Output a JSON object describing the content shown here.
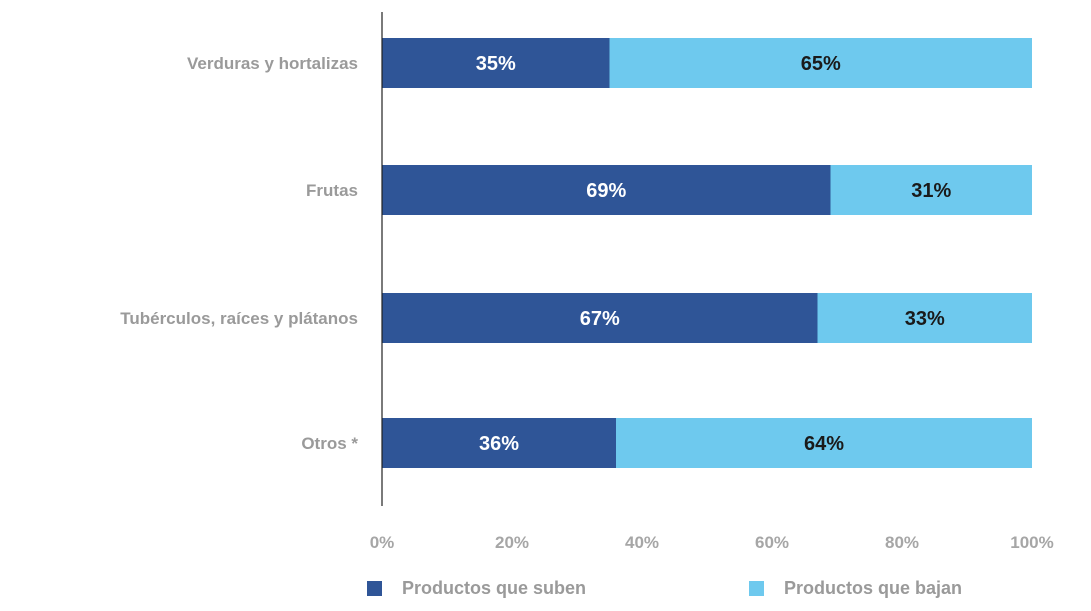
{
  "chart_data": {
    "type": "bar",
    "orientation": "horizontal",
    "stacked": true,
    "categories": [
      "Verduras y hortalizas",
      "Frutas",
      "Tubérculos, raíces y plátanos",
      "Otros *"
    ],
    "series": [
      {
        "name": "Productos que suben",
        "color": "#2f5597",
        "values": [
          35,
          69,
          67,
          36
        ],
        "labels": [
          "35%",
          "69%",
          "67%",
          "36%"
        ],
        "label_color": "#ffffff"
      },
      {
        "name": "Productos que bajan",
        "color": "#6ec9ee",
        "values": [
          65,
          31,
          33,
          64
        ],
        "labels": [
          "65%",
          "31%",
          "33%",
          "64%"
        ],
        "label_color": "#1a1a1a"
      }
    ],
    "xlim": [
      0,
      100
    ],
    "xticks": [
      "0%",
      "20%",
      "40%",
      "60%",
      "80%",
      "100%"
    ],
    "grid": false,
    "legend_position": "bottom"
  }
}
